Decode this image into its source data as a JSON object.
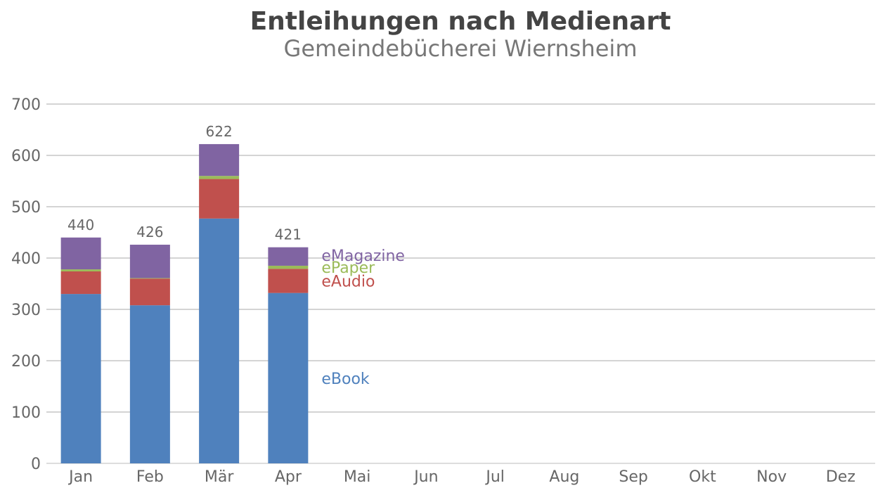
{
  "title": "Entleihungen nach Medienart",
  "subtitle": "Gemeindebücherei Wiernsheim",
  "chart_data": {
    "type": "bar",
    "stacked": true,
    "categories": [
      "Jan",
      "Feb",
      "Mär",
      "Apr",
      "Mai",
      "Jun",
      "Jul",
      "Aug",
      "Sep",
      "Okt",
      "Nov",
      "Dez"
    ],
    "series": [
      {
        "name": "eBook",
        "color": "#4f81bd",
        "values": [
          330,
          308,
          477,
          332,
          null,
          null,
          null,
          null,
          null,
          null,
          null,
          null
        ]
      },
      {
        "name": "eAudio",
        "color": "#c0504d",
        "values": [
          44,
          52,
          77,
          47,
          null,
          null,
          null,
          null,
          null,
          null,
          null,
          null
        ]
      },
      {
        "name": "ePaper",
        "color": "#9bbb59",
        "values": [
          4,
          1,
          6,
          6,
          null,
          null,
          null,
          null,
          null,
          null,
          null,
          null
        ]
      },
      {
        "name": "eMagazine",
        "color": "#8064a2",
        "values": [
          62,
          65,
          62,
          36,
          null,
          null,
          null,
          null,
          null,
          null,
          null,
          null
        ]
      }
    ],
    "totals": [
      440,
      426,
      622,
      421,
      null,
      null,
      null,
      null,
      null,
      null,
      null,
      null
    ],
    "yticks": [
      0,
      100,
      200,
      300,
      400,
      500,
      600,
      700
    ],
    "ylim": [
      0,
      700
    ],
    "grid": true,
    "legend": "inline-right-of-last-bar"
  }
}
